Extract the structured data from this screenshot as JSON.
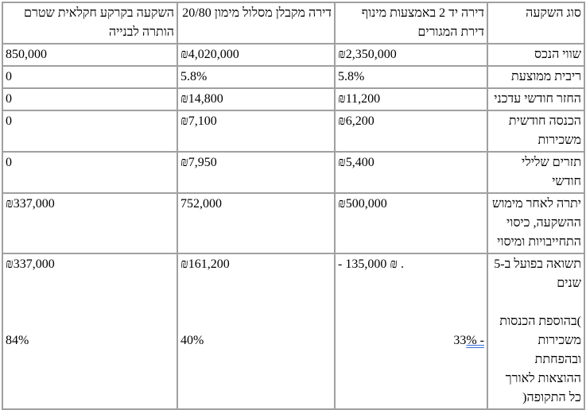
{
  "header": {
    "label": "סוג השקעה",
    "col1": "דירה יד 2 באמצעות מינוף דירת המגורים",
    "col2": "דירה מקבלן מסלול מימון 20/80",
    "col3": "השקעה בקרקע חקלאית שטרם הותרה לבנייה"
  },
  "rows": [
    {
      "label": "שווי הנכס",
      "col1": "₪2,350,000",
      "col2": "₪4,020,000",
      "col3": "850,000"
    },
    {
      "label": "ריבית ממוצעת",
      "col1": "5.8%",
      "col2": "5.8%",
      "col3": "0"
    },
    {
      "label": "החזר חודשי עדכני",
      "col1": "₪11,200",
      "col2": "₪14,800",
      "col3": "0"
    },
    {
      "label": "הכנסה חודשית משכירות",
      "col1": "₪6,200",
      "col2": "₪7,100",
      "col3": "0"
    },
    {
      "label": "תזרים שלילי חודשי",
      "col1": "₪5,400",
      "col2": "₪7,950",
      "col3": "0"
    },
    {
      "label": "יתרה לאחר מימוש ההשקעה, כיסוי התחייבויות ומיסוי",
      "col1": "₪500,000",
      "col2": "752,000",
      "col3": "₪337,000"
    }
  ],
  "last_row": {
    "label_top": "תשואה בפועל ב-5 שנים",
    "label_bottom": ")בהוספת הכנסות משכירות ובהפחתת ההוצאות לאורך כל התקופה(",
    "col1": "- 135,000 ₪ .",
    "col1_pct_num": "33",
    "col1_pct_tail": "% -",
    "col2": "₪161,200",
    "col2_pct": "40%",
    "col3": "₪337,000",
    "col3_pct": "84%"
  }
}
